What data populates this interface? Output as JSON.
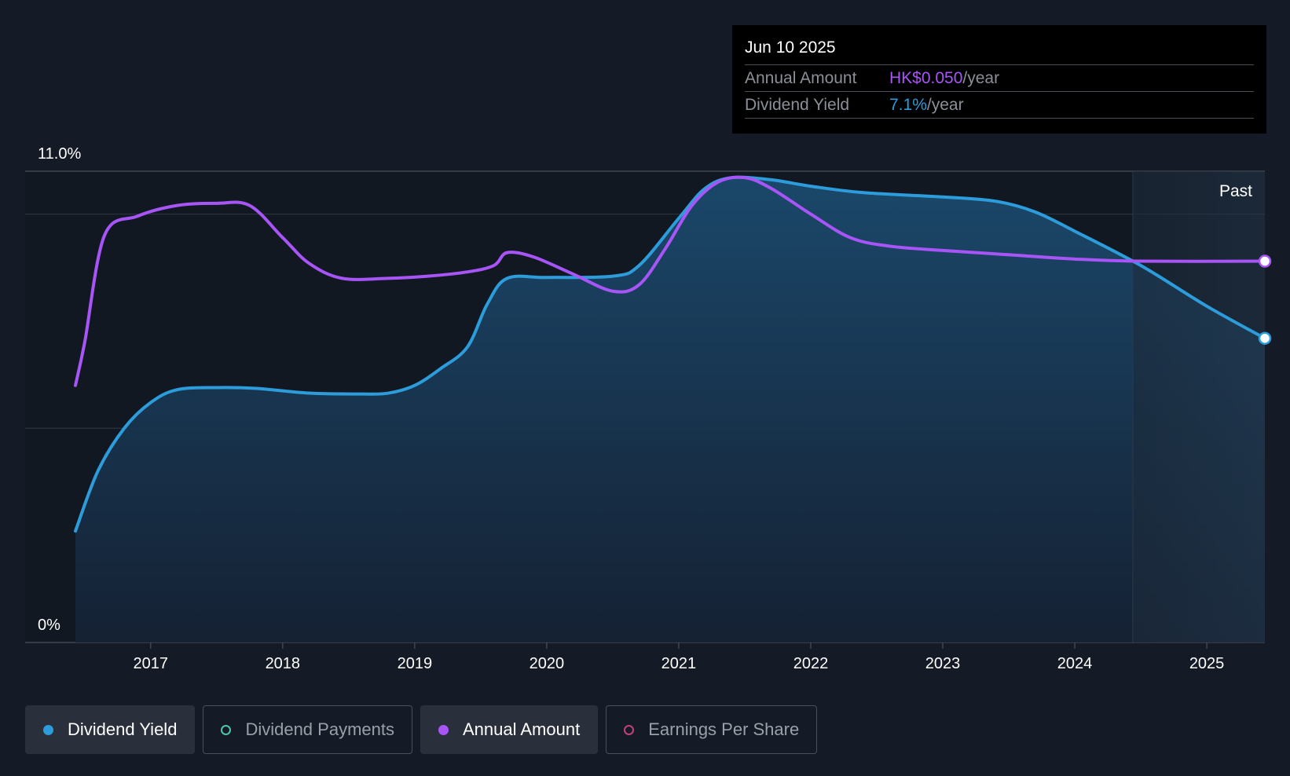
{
  "tooltip": {
    "date": "Jun 10 2025",
    "rows": [
      {
        "label": "Annual Amount",
        "value": "HK$0.050",
        "unit": "/year",
        "color": "#a855f7"
      },
      {
        "label": "Dividend Yield",
        "value": "7.1%",
        "unit": "/year",
        "color": "#2d9cdb"
      }
    ]
  },
  "legend": [
    {
      "label": "Dividend Yield",
      "color": "#2d9cdb",
      "active": true,
      "filled": true,
      "icon": "filled-circle-icon"
    },
    {
      "label": "Dividend Payments",
      "color": "#4fc3b0",
      "active": false,
      "filled": false,
      "icon": "hollow-circle-icon"
    },
    {
      "label": "Annual Amount",
      "color": "#a855f7",
      "active": true,
      "filled": true,
      "icon": "filled-circle-icon"
    },
    {
      "label": "Earnings Per Share",
      "color": "#c2417a",
      "active": false,
      "filled": false,
      "icon": "hollow-circle-icon"
    }
  ],
  "chart_data": {
    "type": "line",
    "y_axis_labels": [
      "11.0%",
      "0%"
    ],
    "ylim": [
      0,
      11.0
    ],
    "xlim": [
      2016.43,
      2025.44
    ],
    "x_ticks": [
      "2017",
      "2018",
      "2019",
      "2020",
      "2021",
      "2022",
      "2023",
      "2024",
      "2025"
    ],
    "grid": true,
    "past_label": "Past",
    "past_start": 2024.44,
    "series": [
      {
        "name": "Dividend Yield",
        "color": "#2d9cdb",
        "area": true,
        "points": [
          [
            2016.43,
            2.6
          ],
          [
            2016.6,
            4.0
          ],
          [
            2016.8,
            5.0
          ],
          [
            2017.0,
            5.6
          ],
          [
            2017.2,
            5.9
          ],
          [
            2017.5,
            5.95
          ],
          [
            2017.8,
            5.93
          ],
          [
            2018.2,
            5.82
          ],
          [
            2018.6,
            5.8
          ],
          [
            2018.8,
            5.82
          ],
          [
            2019.0,
            6.0
          ],
          [
            2019.2,
            6.4
          ],
          [
            2019.4,
            6.9
          ],
          [
            2019.55,
            7.9
          ],
          [
            2019.7,
            8.5
          ],
          [
            2020.0,
            8.52
          ],
          [
            2020.5,
            8.55
          ],
          [
            2020.7,
            8.8
          ],
          [
            2021.0,
            9.9
          ],
          [
            2021.2,
            10.6
          ],
          [
            2021.4,
            10.85
          ],
          [
            2021.7,
            10.8
          ],
          [
            2022.0,
            10.65
          ],
          [
            2022.4,
            10.5
          ],
          [
            2023.0,
            10.4
          ],
          [
            2023.4,
            10.3
          ],
          [
            2023.7,
            10.05
          ],
          [
            2024.0,
            9.6
          ],
          [
            2024.5,
            8.8
          ],
          [
            2025.0,
            7.85
          ],
          [
            2025.44,
            7.1
          ]
        ]
      },
      {
        "name": "Annual Amount",
        "color": "#a855f7",
        "area": false,
        "points": [
          [
            2016.43,
            6.0
          ],
          [
            2016.5,
            7.0
          ],
          [
            2016.65,
            9.5
          ],
          [
            2016.9,
            9.95
          ],
          [
            2017.2,
            10.2
          ],
          [
            2017.5,
            10.25
          ],
          [
            2017.75,
            10.2
          ],
          [
            2018.0,
            9.45
          ],
          [
            2018.2,
            8.85
          ],
          [
            2018.45,
            8.5
          ],
          [
            2018.8,
            8.5
          ],
          [
            2019.1,
            8.55
          ],
          [
            2019.4,
            8.65
          ],
          [
            2019.6,
            8.8
          ],
          [
            2019.7,
            9.1
          ],
          [
            2019.9,
            9.0
          ],
          [
            2020.2,
            8.6
          ],
          [
            2020.5,
            8.2
          ],
          [
            2020.7,
            8.35
          ],
          [
            2020.9,
            9.2
          ],
          [
            2021.1,
            10.2
          ],
          [
            2021.3,
            10.75
          ],
          [
            2021.5,
            10.85
          ],
          [
            2021.7,
            10.6
          ],
          [
            2022.0,
            10.0
          ],
          [
            2022.3,
            9.45
          ],
          [
            2022.6,
            9.25
          ],
          [
            2023.0,
            9.15
          ],
          [
            2023.5,
            9.05
          ],
          [
            2024.0,
            8.95
          ],
          [
            2024.5,
            8.9
          ],
          [
            2025.44,
            8.9
          ]
        ]
      }
    ]
  }
}
